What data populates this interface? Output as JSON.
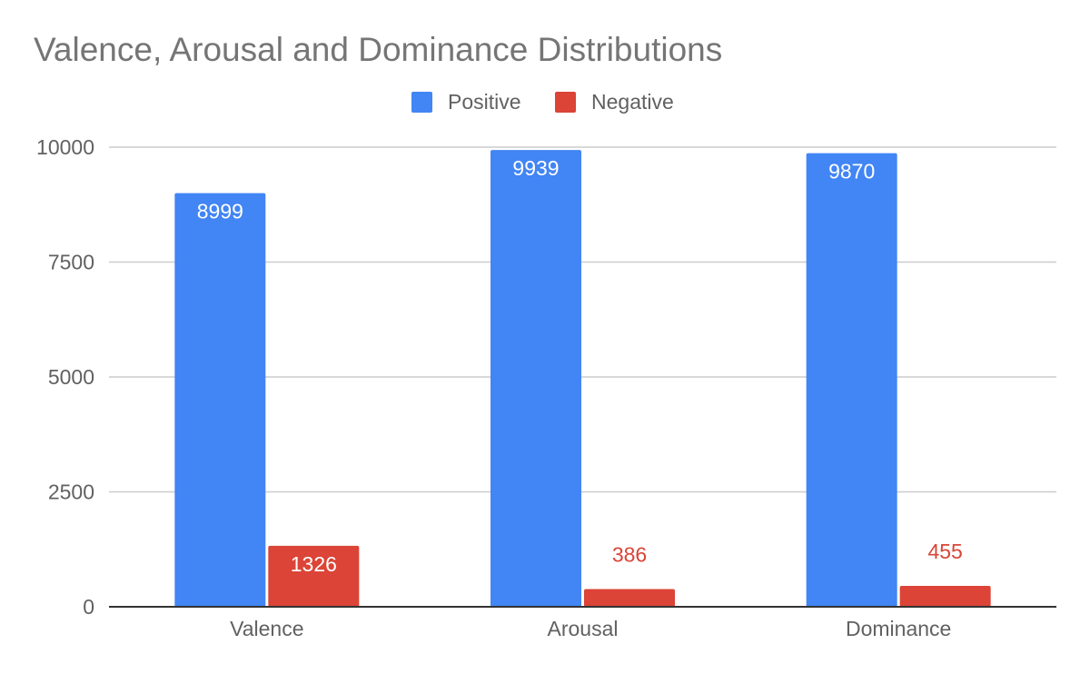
{
  "chart_data": {
    "type": "bar",
    "title": "Valence, Arousal and Dominance Distributions",
    "categories": [
      "Valence",
      "Arousal",
      "Dominance"
    ],
    "series": [
      {
        "name": "Positive",
        "color": "#4285F4",
        "values": [
          8999,
          9939,
          9870
        ],
        "labels": [
          "8999",
          "9939",
          "9870"
        ]
      },
      {
        "name": "Negative",
        "color": "#DB4437",
        "values": [
          1326,
          386,
          455
        ],
        "labels": [
          "1326",
          "386",
          "455"
        ]
      }
    ],
    "xlabel": "",
    "ylabel": "",
    "ylim": [
      0,
      10000
    ],
    "yticks": [
      0,
      2500,
      5000,
      7500,
      10000
    ],
    "ytick_labels": [
      "0",
      "2500",
      "5000",
      "7500",
      "10000"
    ],
    "grid": true,
    "legend_position": "top-center"
  }
}
